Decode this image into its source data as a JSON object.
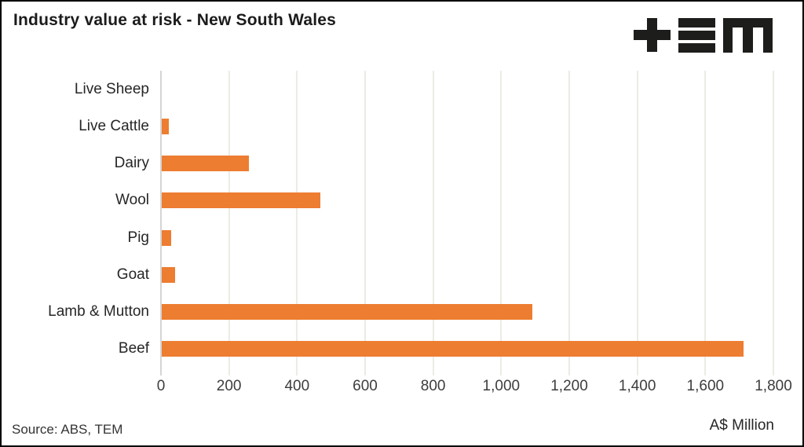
{
  "header": {
    "title": "Industry value at risk - New South Wales",
    "logo_name": "TEM"
  },
  "chart_data": {
    "type": "bar",
    "orientation": "horizontal",
    "title": "Industry value at risk - New South Wales",
    "categories": [
      "Live Sheep",
      "Live Cattle",
      "Dairy",
      "Wool",
      "Pig",
      "Goat",
      "Lamb & Mutton",
      "Beef"
    ],
    "values": [
      0,
      20,
      255,
      465,
      28,
      40,
      1090,
      1710
    ],
    "xlabel": "A$ Million",
    "ylabel": "",
    "xlim": [
      0,
      1800
    ],
    "xticks": [
      0,
      200,
      400,
      600,
      800,
      1000,
      1200,
      1400,
      1600,
      1800
    ],
    "xtick_labels": [
      "0",
      "200",
      "400",
      "600",
      "800",
      "1,000",
      "1,200",
      "1,400",
      "1,600",
      "1,800"
    ],
    "grid": true,
    "legend": false,
    "bar_color": "#ED7D31",
    "gridline_color": "#ECECE3",
    "axis_line_color": "#D5D5D5",
    "logo_color": "#1d1d1b"
  },
  "footer": {
    "source": "Source: ABS, TEM",
    "axis_label": "A$ Million"
  }
}
